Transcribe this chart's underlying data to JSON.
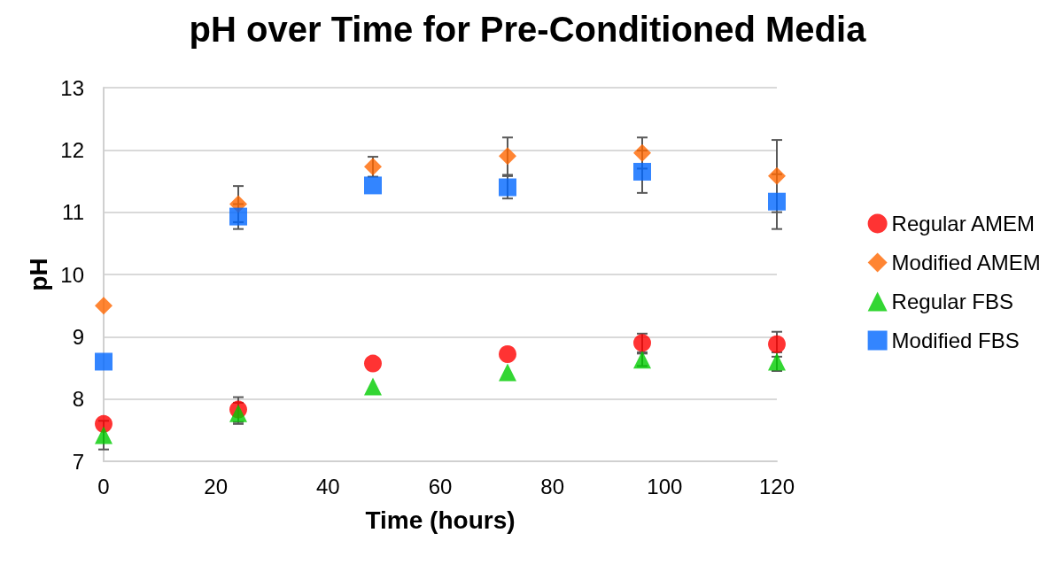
{
  "chart_data": {
    "type": "scatter",
    "title": "pH over Time for Pre-Conditioned Media",
    "xlabel": "Time (hours)",
    "ylabel": "pH",
    "x": [
      0,
      24,
      48,
      72,
      96,
      120
    ],
    "series": [
      {
        "name": "Regular AMEM",
        "color": "#ff0000",
        "marker": "circle",
        "values": [
          7.6,
          7.83,
          8.57,
          8.72,
          8.9,
          8.88
        ],
        "errors": [
          null,
          0.2,
          null,
          null,
          0.15,
          0.2
        ]
      },
      {
        "name": "Modified AMEM",
        "color": "#ff6600",
        "marker": "diamond",
        "values": [
          9.5,
          11.13,
          11.73,
          11.9,
          11.95,
          11.58
        ],
        "errors": [
          null,
          0.29,
          0.16,
          0.3,
          0.25,
          0.58
        ]
      },
      {
        "name": "Regular FBS",
        "color": "#00cc00",
        "marker": "triangle",
        "values": [
          7.42,
          7.77,
          8.2,
          8.43,
          8.63,
          8.6
        ],
        "errors": [
          0.23,
          0.17,
          null,
          null,
          0.1,
          0.15
        ]
      },
      {
        "name": "Modified FBS",
        "color": "#0066ff",
        "marker": "square",
        "values": [
          8.6,
          10.93,
          11.43,
          11.4,
          11.65,
          11.17
        ],
        "errors": [
          null,
          0.2,
          null,
          0.18,
          0.34,
          0.44
        ]
      }
    ],
    "xlim": [
      0,
      120
    ],
    "xticks": [
      0,
      20,
      40,
      60,
      80,
      100,
      120
    ],
    "ylim": [
      7,
      13
    ],
    "yticks": [
      7,
      8,
      9,
      10,
      11,
      12,
      13
    ],
    "grid": "y",
    "legend": "right"
  }
}
